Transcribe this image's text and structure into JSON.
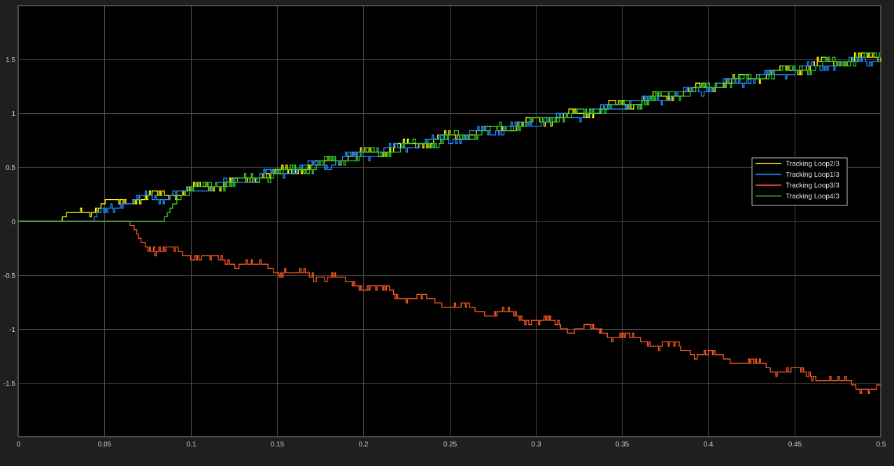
{
  "chart_data": {
    "type": "line",
    "title": "",
    "xlabel": "",
    "ylabel": "",
    "xlim": [
      0,
      0.5
    ],
    "ylim": [
      -2,
      2
    ],
    "grid": true,
    "legend_position": "right",
    "background": "#000000",
    "figure_background": "#1f1f1f",
    "x_ticks": [
      {
        "value": 0,
        "label": "0"
      },
      {
        "value": 0.05,
        "label": "0.05"
      },
      {
        "value": 0.1,
        "label": "0.1"
      },
      {
        "value": 0.15,
        "label": "0.15"
      },
      {
        "value": 0.2,
        "label": "0.2"
      },
      {
        "value": 0.25,
        "label": "0.25"
      },
      {
        "value": 0.3,
        "label": "0.3"
      },
      {
        "value": 0.35,
        "label": "0.35"
      },
      {
        "value": 0.4,
        "label": "0.4"
      },
      {
        "value": 0.45,
        "label": "0.45"
      },
      {
        "value": 0.5,
        "label": "0.5"
      }
    ],
    "y_ticks": [
      {
        "value": 1.5,
        "label": "1.5"
      },
      {
        "value": 1,
        "label": "1"
      },
      {
        "value": 0.5,
        "label": "0.5"
      },
      {
        "value": 0,
        "label": "0"
      },
      {
        "value": -0.5,
        "label": "-0.5"
      },
      {
        "value": -1,
        "label": "-1"
      },
      {
        "value": -1.5,
        "label": "-1.5"
      }
    ],
    "series": [
      {
        "name": "Tracking Loop2/3",
        "color": "#ffff00",
        "x": [
          0,
          0.022,
          0.05,
          0.09,
          0.15,
          0.2,
          0.25,
          0.3,
          0.35,
          0.4,
          0.45,
          0.5
        ],
        "y": [
          0,
          0,
          0.16,
          0.26,
          0.45,
          0.62,
          0.78,
          0.92,
          1.08,
          1.25,
          1.42,
          1.54
        ]
      },
      {
        "name": "Tracking Loop1/3",
        "color": "#1e90ff",
        "x": [
          0,
          0.042,
          0.06,
          0.09,
          0.15,
          0.2,
          0.25,
          0.3,
          0.35,
          0.4,
          0.45,
          0.5
        ],
        "y": [
          0,
          0,
          0.18,
          0.25,
          0.44,
          0.61,
          0.77,
          0.91,
          1.07,
          1.24,
          1.4,
          1.52
        ]
      },
      {
        "name": "Tracking Loop3/3",
        "color": "#ff5a1f",
        "x": [
          0,
          0.064,
          0.072,
          0.1,
          0.15,
          0.16,
          0.175,
          0.2,
          0.25,
          0.3,
          0.35,
          0.4,
          0.45,
          0.5
        ],
        "y": [
          0,
          0,
          -0.22,
          -0.32,
          -0.44,
          -0.5,
          -0.5,
          -0.6,
          -0.78,
          -0.92,
          -1.07,
          -1.24,
          -1.4,
          -1.57
        ]
      },
      {
        "name": "Tracking Loop4/3",
        "color": "#32cd32",
        "x": [
          0,
          0.084,
          0.095,
          0.15,
          0.2,
          0.25,
          0.3,
          0.35,
          0.4,
          0.45,
          0.5
        ],
        "y": [
          0,
          0,
          0.28,
          0.44,
          0.61,
          0.77,
          0.92,
          1.08,
          1.24,
          1.41,
          1.53
        ]
      }
    ]
  }
}
